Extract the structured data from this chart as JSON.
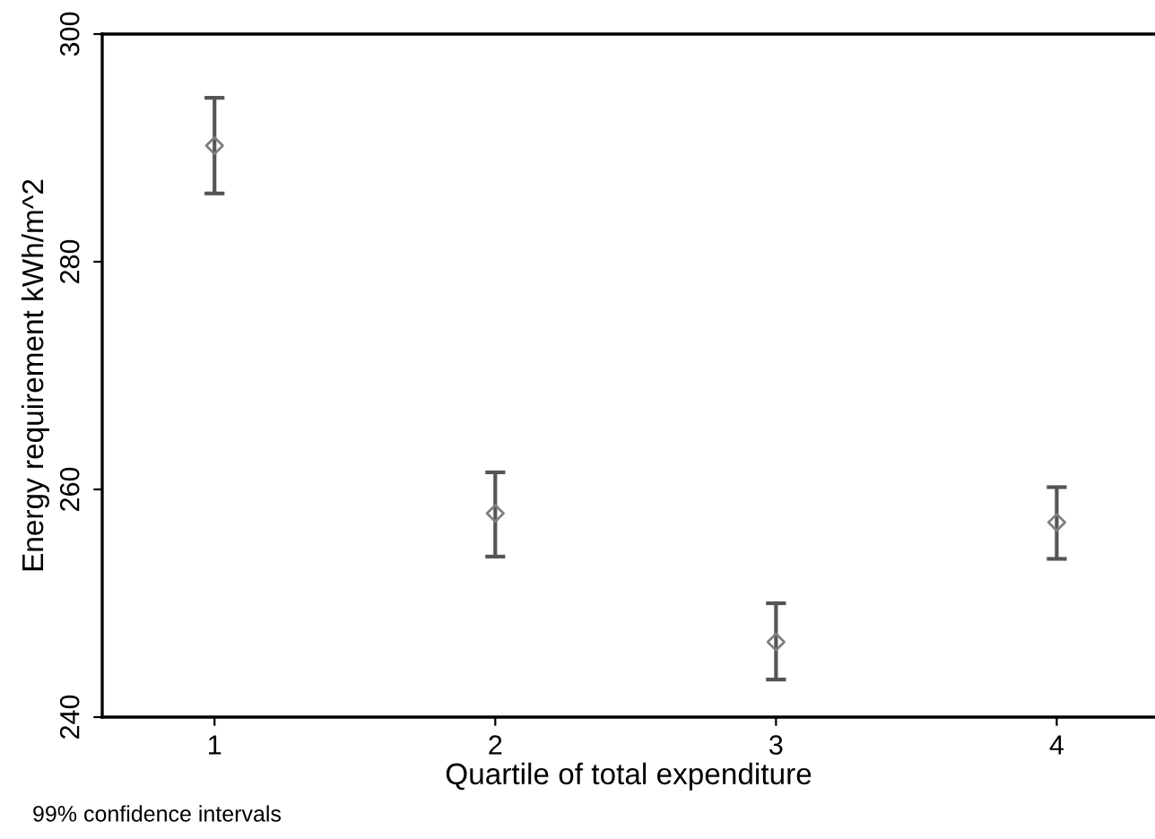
{
  "chart_data": {
    "type": "scatter",
    "xlabel": "Quartile of total expenditure",
    "ylabel": "Energy requirement kWh/m^2",
    "x": [
      1,
      2,
      3,
      4
    ],
    "values": [
      290.2,
      257.9,
      246.6,
      257.1
    ],
    "errors": [
      [
        286.0,
        294.4
      ],
      [
        254.1,
        261.5
      ],
      [
        243.3,
        250.0
      ],
      [
        253.9,
        260.2
      ]
    ],
    "color": "#7f7f7f",
    "marker": "diamond",
    "grid": false,
    "legend": false,
    "xlim": [
      0.6,
      4.35
    ],
    "ylim": [
      240,
      300
    ],
    "xticks": [
      1,
      2,
      3,
      4
    ],
    "yticks": [
      240,
      260,
      280,
      300
    ],
    "annotations": [
      "99% confidence intervals"
    ]
  }
}
